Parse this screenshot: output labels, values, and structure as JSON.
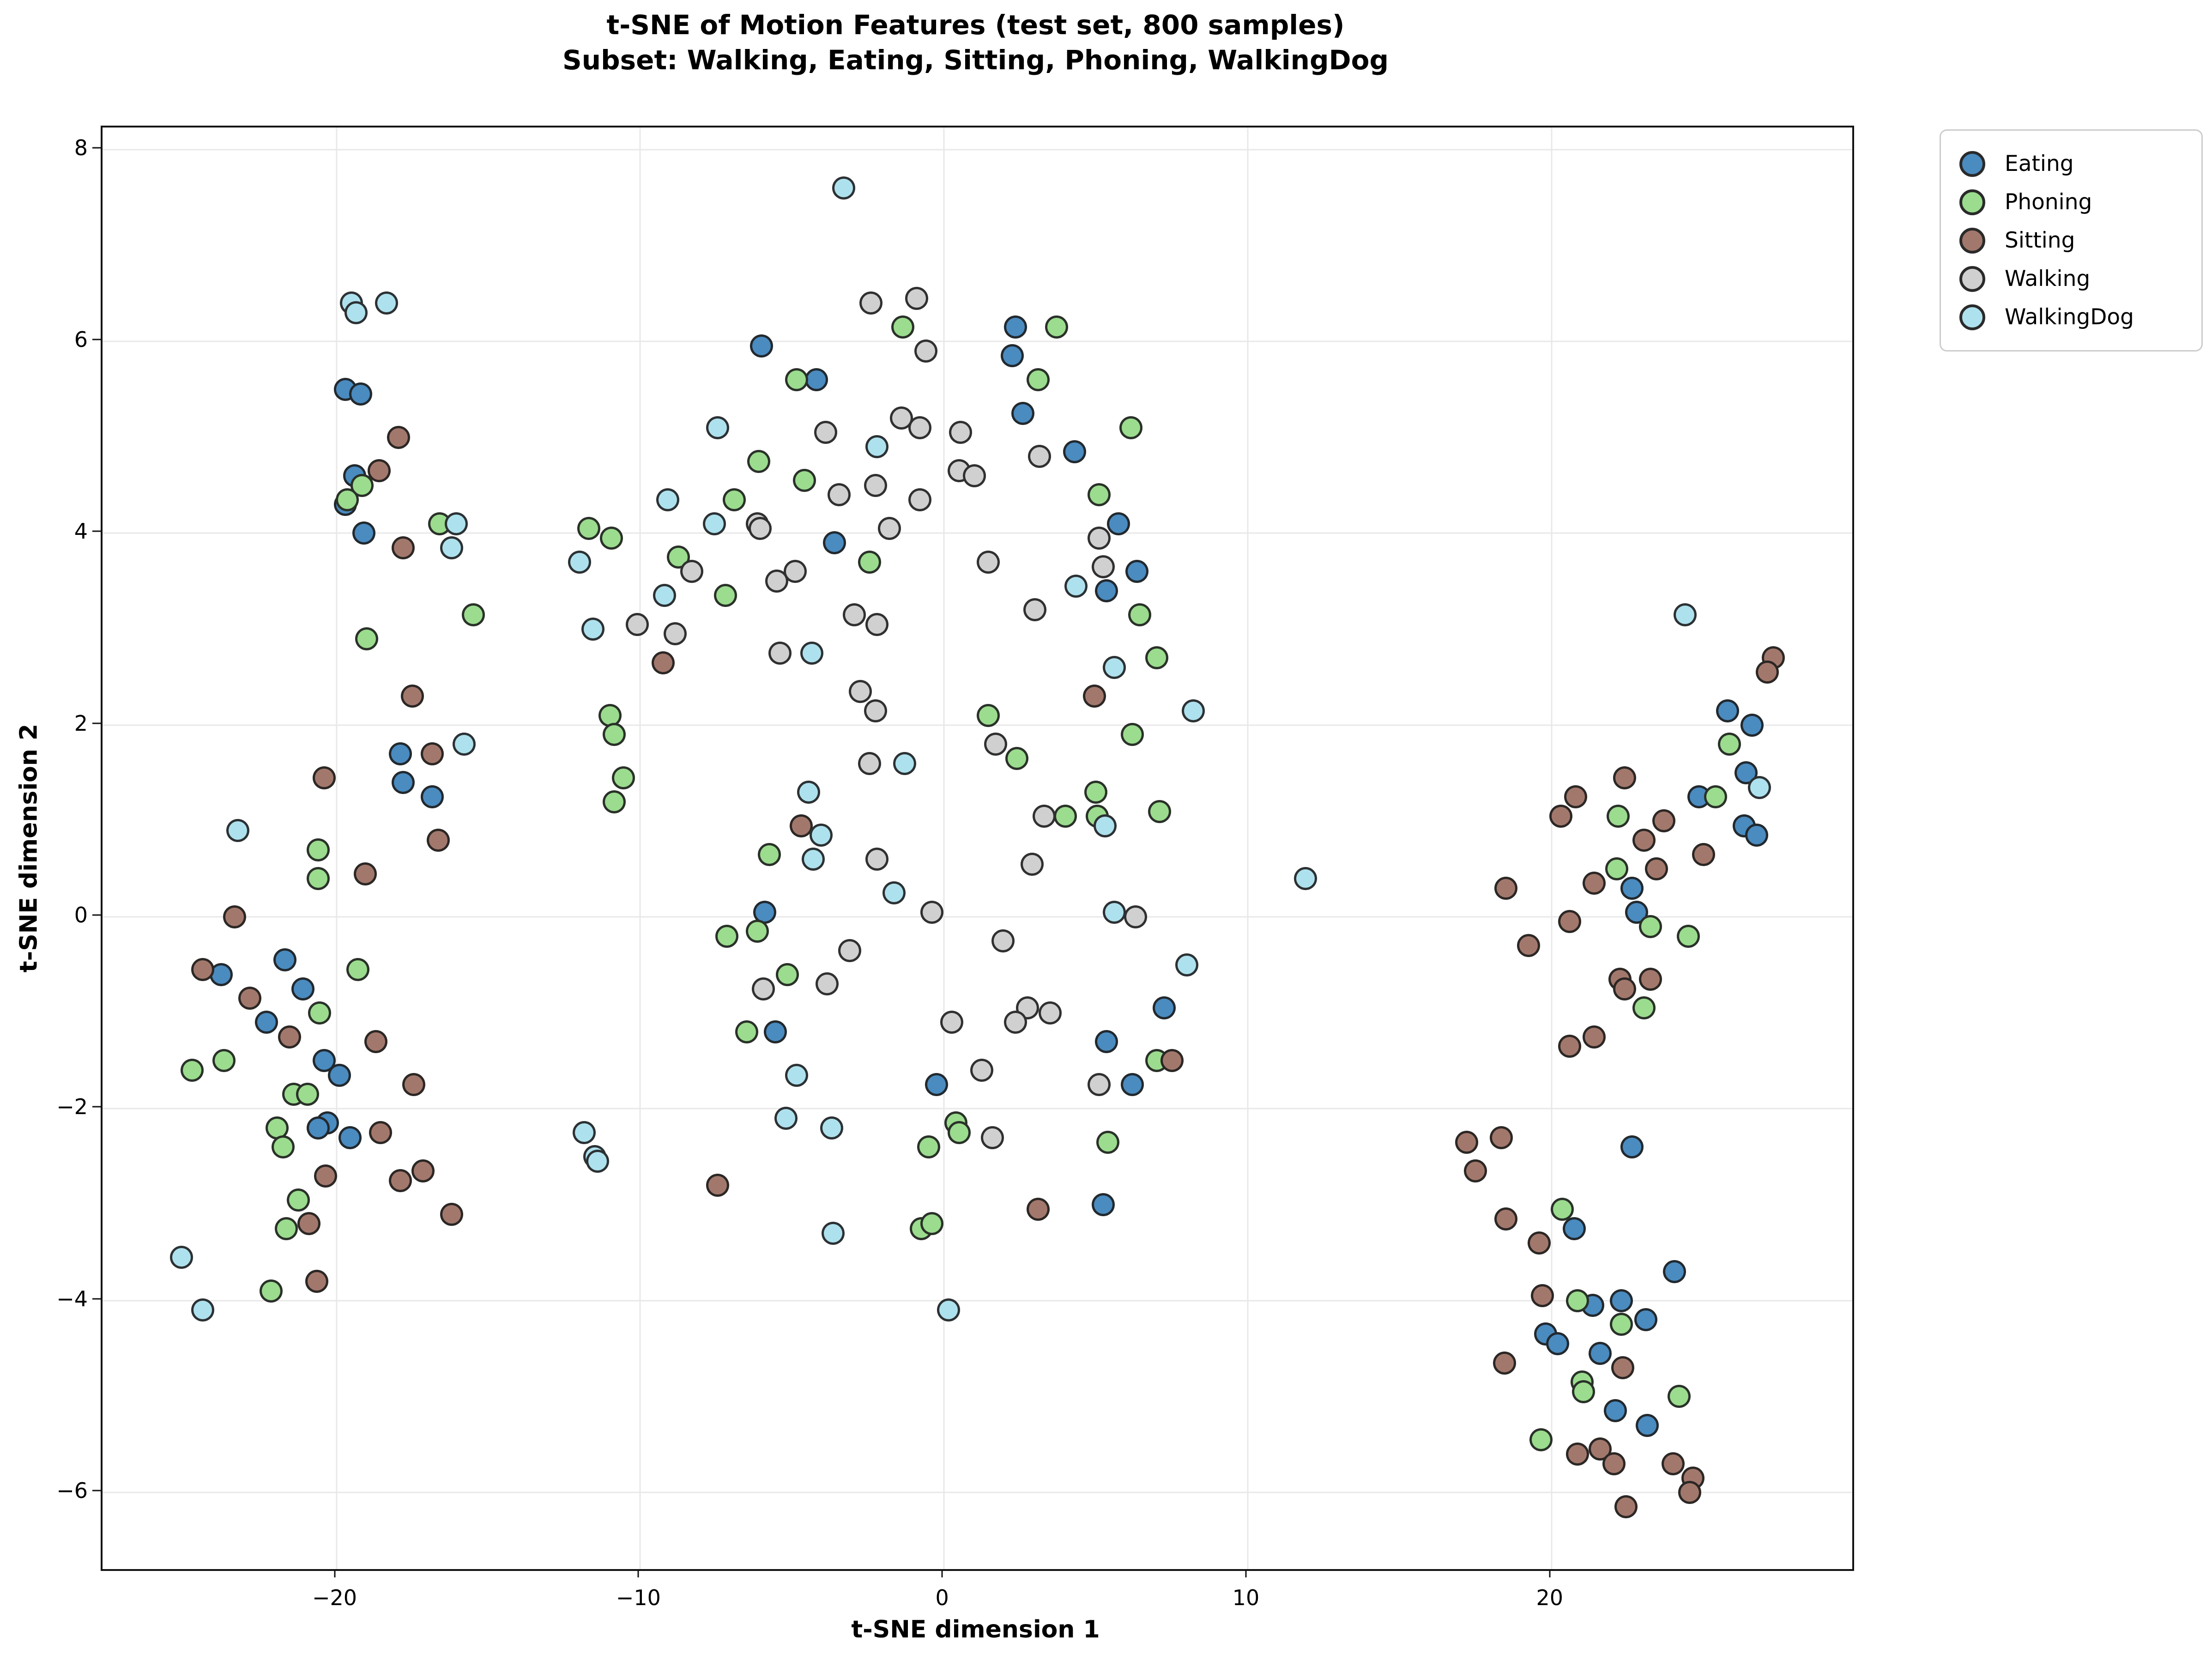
{
  "chart_data": {
    "type": "scatter",
    "title_line1": "t-SNE of Motion Features (test set, 800 samples)",
    "title_line2": "Subset: Walking, Eating, Sitting, Phoning, WalkingDog",
    "xlabel": "t-SNE dimension 1",
    "ylabel": "t-SNE dimension 2",
    "xlim": [
      -27.7,
      29.9
    ],
    "ylim": [
      -6.8,
      8.23
    ],
    "xticks": [
      -20,
      -10,
      0,
      10,
      20
    ],
    "yticks": [
      -6,
      -4,
      -2,
      0,
      2,
      4,
      6,
      8
    ],
    "grid": true,
    "legend_position": "upper right, outside axes",
    "marker_edge_color": "#262626",
    "series": [
      {
        "name": "Eating",
        "color": "#4a8bc0",
        "points": [
          [
            -19.7,
            5.5
          ],
          [
            -19.2,
            5.45
          ],
          [
            -19.4,
            4.6
          ],
          [
            -19.7,
            4.3
          ],
          [
            -19.1,
            4.0
          ],
          [
            -6.0,
            5.95
          ],
          [
            -4.2,
            5.6
          ],
          [
            -3.6,
            3.9
          ],
          [
            2.35,
            6.15
          ],
          [
            2.25,
            5.85
          ],
          [
            2.6,
            5.25
          ],
          [
            4.3,
            4.85
          ],
          [
            5.75,
            4.1
          ],
          [
            6.35,
            3.6
          ],
          [
            5.35,
            3.4
          ],
          [
            -17.9,
            1.7
          ],
          [
            -17.8,
            1.4
          ],
          [
            -16.85,
            1.25
          ],
          [
            -23.8,
            -0.6
          ],
          [
            -22.3,
            -1.1
          ],
          [
            -21.7,
            -0.45
          ],
          [
            -21.1,
            -0.75
          ],
          [
            -20.4,
            -1.5
          ],
          [
            -19.9,
            -1.65
          ],
          [
            -5.9,
            0.05
          ],
          [
            -5.55,
            -1.2
          ],
          [
            7.25,
            -0.95
          ],
          [
            5.35,
            -1.3
          ],
          [
            6.2,
            -1.75
          ],
          [
            25.8,
            2.15
          ],
          [
            26.6,
            2.0
          ],
          [
            26.4,
            1.5
          ],
          [
            24.85,
            1.25
          ],
          [
            26.35,
            0.95
          ],
          [
            26.75,
            0.85
          ],
          [
            22.65,
            0.3
          ],
          [
            22.8,
            0.05
          ],
          [
            -20.3,
            -2.15
          ],
          [
            -20.6,
            -2.2
          ],
          [
            -19.55,
            -2.3
          ],
          [
            -0.25,
            -1.75
          ],
          [
            5.25,
            -3.0
          ],
          [
            22.65,
            -2.4
          ],
          [
            20.75,
            -3.25
          ],
          [
            24.05,
            -3.7
          ],
          [
            21.35,
            -4.05
          ],
          [
            22.3,
            -4.0
          ],
          [
            23.1,
            -4.2
          ],
          [
            19.8,
            -4.35
          ],
          [
            20.2,
            -4.45
          ],
          [
            21.6,
            -4.55
          ],
          [
            22.1,
            -5.15
          ],
          [
            23.15,
            -5.3
          ]
        ]
      },
      {
        "name": "Phoning",
        "color": "#9bdc8e",
        "points": [
          [
            -19.15,
            4.5
          ],
          [
            -19.65,
            4.35
          ],
          [
            -16.6,
            4.1
          ],
          [
            -1.35,
            6.15
          ],
          [
            -4.85,
            5.6
          ],
          [
            -6.1,
            4.75
          ],
          [
            -4.6,
            4.55
          ],
          [
            -6.9,
            4.35
          ],
          [
            -11.7,
            4.05
          ],
          [
            -10.95,
            3.95
          ],
          [
            -8.75,
            3.75
          ],
          [
            -2.45,
            3.7
          ],
          [
            -7.2,
            3.35
          ],
          [
            3.7,
            6.15
          ],
          [
            3.1,
            5.6
          ],
          [
            6.15,
            5.1
          ],
          [
            5.1,
            4.4
          ],
          [
            -15.5,
            3.15
          ],
          [
            -19.0,
            2.9
          ],
          [
            -20.6,
            0.7
          ],
          [
            -20.6,
            0.4
          ],
          [
            -19.3,
            -0.55
          ],
          [
            -20.55,
            -1.0
          ],
          [
            -23.7,
            -1.5
          ],
          [
            -24.75,
            -1.6
          ],
          [
            -11.0,
            2.1
          ],
          [
            -10.85,
            1.9
          ],
          [
            -10.55,
            1.45
          ],
          [
            -10.85,
            1.2
          ],
          [
            -5.75,
            0.65
          ],
          [
            -7.15,
            -0.2
          ],
          [
            -6.15,
            -0.15
          ],
          [
            -5.15,
            -0.6
          ],
          [
            -6.5,
            -1.2
          ],
          [
            6.45,
            3.15
          ],
          [
            7.0,
            2.7
          ],
          [
            1.45,
            2.1
          ],
          [
            6.2,
            1.9
          ],
          [
            2.4,
            1.65
          ],
          [
            5.0,
            1.3
          ],
          [
            4.0,
            1.05
          ],
          [
            5.05,
            1.05
          ],
          [
            7.1,
            1.1
          ],
          [
            7.0,
            -1.5
          ],
          [
            25.85,
            1.8
          ],
          [
            25.4,
            1.25
          ],
          [
            22.2,
            1.05
          ],
          [
            22.15,
            0.5
          ],
          [
            23.25,
            -0.1
          ],
          [
            24.5,
            -0.2
          ],
          [
            23.05,
            -0.95
          ],
          [
            -21.4,
            -1.85
          ],
          [
            -20.95,
            -1.85
          ],
          [
            -21.95,
            -2.2
          ],
          [
            -21.75,
            -2.4
          ],
          [
            -21.25,
            -2.95
          ],
          [
            -21.65,
            -3.25
          ],
          [
            -22.15,
            -3.9
          ],
          [
            0.4,
            -2.15
          ],
          [
            0.5,
            -2.25
          ],
          [
            -0.5,
            -2.4
          ],
          [
            -0.75,
            -3.25
          ],
          [
            -0.4,
            -3.2
          ],
          [
            5.4,
            -2.35
          ],
          [
            20.35,
            -3.05
          ],
          [
            20.85,
            -4.0
          ],
          [
            22.3,
            -4.25
          ],
          [
            21.0,
            -4.85
          ],
          [
            21.05,
            -4.95
          ],
          [
            24.2,
            -5.0
          ],
          [
            19.65,
            -5.45
          ]
        ]
      },
      {
        "name": "Sitting",
        "color": "#a3786c",
        "points": [
          [
            -17.95,
            5.0
          ],
          [
            -18.6,
            4.65
          ],
          [
            -17.8,
            3.85
          ],
          [
            -17.5,
            2.3
          ],
          [
            -16.85,
            1.7
          ],
          [
            -20.4,
            1.45
          ],
          [
            -16.65,
            0.8
          ],
          [
            -19.05,
            0.45
          ],
          [
            -23.35,
            0.0
          ],
          [
            -24.4,
            -0.55
          ],
          [
            -22.85,
            -0.85
          ],
          [
            -21.55,
            -1.25
          ],
          [
            -18.7,
            -1.3
          ],
          [
            -9.25,
            2.65
          ],
          [
            -4.7,
            0.95
          ],
          [
            4.95,
            2.3
          ],
          [
            7.5,
            -1.5
          ],
          [
            27.3,
            2.7
          ],
          [
            27.1,
            2.55
          ],
          [
            22.4,
            1.45
          ],
          [
            20.8,
            1.25
          ],
          [
            20.3,
            1.05
          ],
          [
            23.7,
            1.0
          ],
          [
            23.05,
            0.8
          ],
          [
            25.0,
            0.65
          ],
          [
            23.45,
            0.5
          ],
          [
            21.4,
            0.35
          ],
          [
            18.5,
            0.3
          ],
          [
            20.6,
            -0.05
          ],
          [
            19.25,
            -0.3
          ],
          [
            22.25,
            -0.65
          ],
          [
            23.25,
            -0.65
          ],
          [
            22.4,
            -0.75
          ],
          [
            21.4,
            -1.25
          ],
          [
            20.6,
            -1.35
          ],
          [
            -17.45,
            -1.75
          ],
          [
            -18.55,
            -2.25
          ],
          [
            -20.35,
            -2.7
          ],
          [
            -17.9,
            -2.75
          ],
          [
            -17.15,
            -2.65
          ],
          [
            -20.9,
            -3.2
          ],
          [
            -16.2,
            -3.1
          ],
          [
            -20.65,
            -3.8
          ],
          [
            -7.45,
            -2.8
          ],
          [
            3.1,
            -3.05
          ],
          [
            17.2,
            -2.35
          ],
          [
            18.35,
            -2.3
          ],
          [
            17.5,
            -2.65
          ],
          [
            18.5,
            -3.15
          ],
          [
            19.6,
            -3.4
          ],
          [
            19.7,
            -3.95
          ],
          [
            18.45,
            -4.65
          ],
          [
            22.35,
            -4.7
          ],
          [
            20.85,
            -5.6
          ],
          [
            21.6,
            -5.55
          ],
          [
            22.05,
            -5.7
          ],
          [
            24.0,
            -5.7
          ],
          [
            24.65,
            -5.85
          ],
          [
            24.55,
            -6.0
          ],
          [
            22.45,
            -6.15
          ]
        ]
      },
      {
        "name": "Walking",
        "color": "#d0d0d0",
        "points": [
          [
            -2.4,
            6.4
          ],
          [
            -0.9,
            6.45
          ],
          [
            -0.6,
            5.9
          ],
          [
            -3.9,
            5.05
          ],
          [
            -1.4,
            5.2
          ],
          [
            -0.8,
            5.1
          ],
          [
            0.55,
            5.05
          ],
          [
            0.5,
            4.65
          ],
          [
            1.0,
            4.6
          ],
          [
            -3.45,
            4.4
          ],
          [
            -2.25,
            4.5
          ],
          [
            -0.8,
            4.35
          ],
          [
            -6.15,
            4.1
          ],
          [
            -6.05,
            4.05
          ],
          [
            -1.8,
            4.05
          ],
          [
            -8.3,
            3.6
          ],
          [
            -5.5,
            3.5
          ],
          [
            -4.9,
            3.6
          ],
          [
            1.45,
            3.7
          ],
          [
            3.15,
            4.8
          ],
          [
            5.1,
            3.95
          ],
          [
            5.25,
            3.65
          ],
          [
            -10.1,
            3.05
          ],
          [
            -8.85,
            2.95
          ],
          [
            -5.4,
            2.75
          ],
          [
            -2.95,
            3.15
          ],
          [
            -2.2,
            3.05
          ],
          [
            -2.75,
            2.35
          ],
          [
            -2.25,
            2.15
          ],
          [
            -2.45,
            1.6
          ],
          [
            -2.2,
            0.6
          ],
          [
            -0.4,
            0.05
          ],
          [
            -3.1,
            -0.35
          ],
          [
            -5.95,
            -0.75
          ],
          [
            -3.85,
            -0.7
          ],
          [
            0.25,
            -1.1
          ],
          [
            1.25,
            -1.6
          ],
          [
            3.0,
            3.2
          ],
          [
            1.7,
            1.8
          ],
          [
            3.3,
            1.05
          ],
          [
            2.9,
            0.55
          ],
          [
            6.3,
            0.0
          ],
          [
            1.95,
            -0.25
          ],
          [
            2.75,
            -0.95
          ],
          [
            2.35,
            -1.1
          ],
          [
            3.5,
            -1.0
          ],
          [
            5.1,
            -1.75
          ],
          [
            1.6,
            -2.3
          ]
        ]
      },
      {
        "name": "WalkingDog",
        "color": "#aee1ee",
        "points": [
          [
            -19.5,
            6.4
          ],
          [
            -19.35,
            6.3
          ],
          [
            -18.35,
            6.4
          ],
          [
            -16.05,
            4.1
          ],
          [
            -16.2,
            3.85
          ],
          [
            -3.3,
            7.6
          ],
          [
            -7.45,
            5.1
          ],
          [
            -2.2,
            4.9
          ],
          [
            -9.1,
            4.35
          ],
          [
            -7.55,
            4.1
          ],
          [
            -12.0,
            3.7
          ],
          [
            -9.2,
            3.35
          ],
          [
            4.35,
            3.45
          ],
          [
            -23.25,
            0.9
          ],
          [
            -15.8,
            1.8
          ],
          [
            -11.55,
            3.0
          ],
          [
            -4.35,
            2.75
          ],
          [
            -1.3,
            1.6
          ],
          [
            -4.45,
            1.3
          ],
          [
            -4.05,
            0.85
          ],
          [
            -4.3,
            0.6
          ],
          [
            -1.65,
            0.25
          ],
          [
            -4.85,
            -1.65
          ],
          [
            5.6,
            2.6
          ],
          [
            8.2,
            2.15
          ],
          [
            5.3,
            0.95
          ],
          [
            11.9,
            0.4
          ],
          [
            5.6,
            0.05
          ],
          [
            8.0,
            -0.5
          ],
          [
            24.4,
            3.15
          ],
          [
            26.85,
            1.35
          ],
          [
            -25.1,
            -3.55
          ],
          [
            -24.4,
            -4.1
          ],
          [
            -11.85,
            -2.25
          ],
          [
            -11.5,
            -2.5
          ],
          [
            -11.4,
            -2.55
          ],
          [
            -5.2,
            -2.1
          ],
          [
            -3.7,
            -2.2
          ],
          [
            -3.65,
            -3.3
          ],
          [
            0.15,
            -4.1
          ]
        ]
      }
    ]
  },
  "legend": {
    "entries": [
      {
        "label": "Eating",
        "color": "#4a8bc0"
      },
      {
        "label": "Phoning",
        "color": "#9bdc8e"
      },
      {
        "label": "Sitting",
        "color": "#a3786c"
      },
      {
        "label": "Walking",
        "color": "#d0d0d0"
      },
      {
        "label": "WalkingDog",
        "color": "#aee1ee"
      }
    ]
  }
}
